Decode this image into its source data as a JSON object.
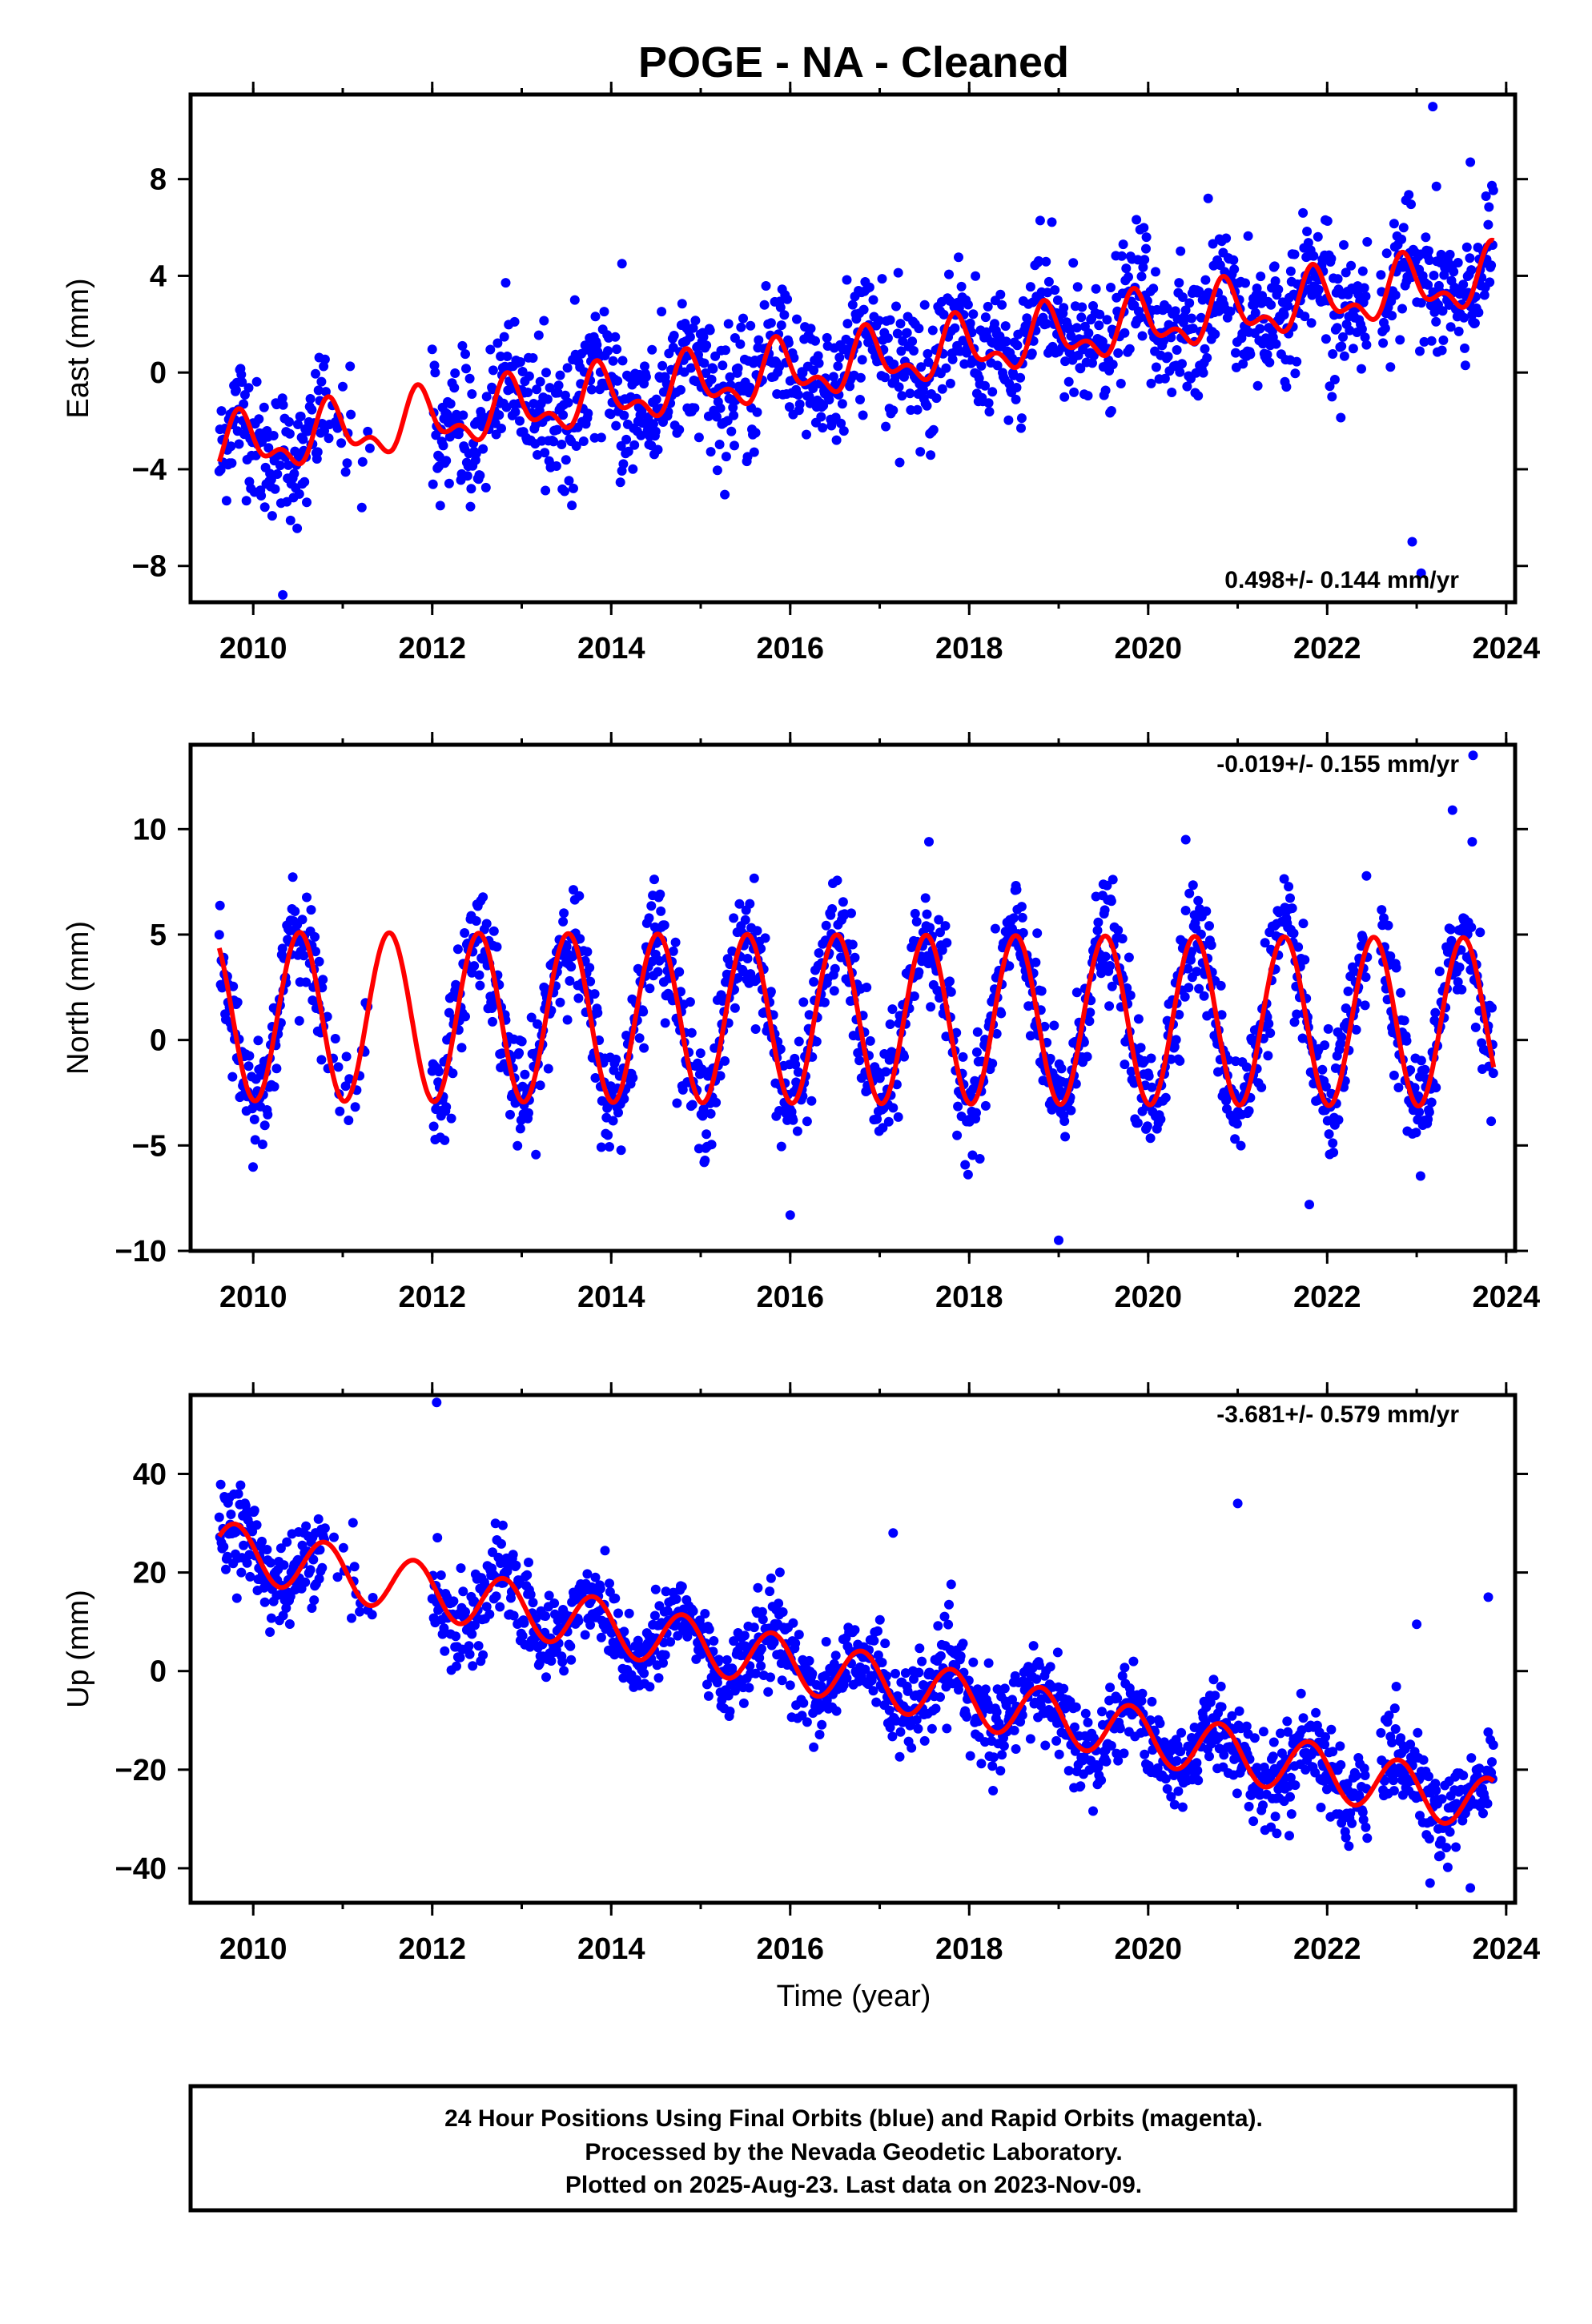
{
  "title": "POGE  - NA - Cleaned",
  "colors": {
    "data_points": "#0000ff",
    "model_curve": "#ff0000",
    "frame": "#000000",
    "background": "#ffffff"
  },
  "x_axis": {
    "label": "Time (year)",
    "range": [
      2009.3,
      2024.1
    ],
    "ticks": [
      2010,
      2012,
      2014,
      2016,
      2018,
      2020,
      2022,
      2024
    ],
    "tick_labels": [
      "2010",
      "2012",
      "2014",
      "2016",
      "2018",
      "2020",
      "2022",
      "2024"
    ]
  },
  "chart_data": [
    {
      "type": "scatter",
      "component": "east",
      "ylabel": "East (mm)",
      "ylim": [
        -9.5,
        11.5
      ],
      "yticks": [
        -8,
        -4,
        0,
        4,
        8
      ],
      "ytick_labels": [
        "−8",
        "−4",
        "0",
        "4",
        "8"
      ],
      "rate_text": "0.498+/- 0.144 mm/yr",
      "rate_position": "bottom-right",
      "trend": {
        "slope_mm_per_yr": 0.498,
        "intercept_mm_at_2016": 0.0
      },
      "seasonal": {
        "annual_amp_mm": 1.0,
        "annual_phase_yr": 0.62,
        "semiannual_amp_mm": 0.6,
        "semiannual_phase_yr": 0.2
      },
      "scatter_mm": 1.3,
      "data_spans": [
        [
          2009.62,
          2011.35
        ],
        [
          2012.0,
          2022.45
        ],
        [
          2022.6,
          2023.86
        ]
      ],
      "outliers": [
        [
          2023.18,
          11.0
        ],
        [
          2023.22,
          7.7
        ],
        [
          2023.6,
          8.7
        ],
        [
          2023.05,
          -8.3
        ],
        [
          2021.73,
          6.6
        ],
        [
          2014.12,
          4.5
        ],
        [
          2019.98,
          5.6
        ],
        [
          2020.67,
          7.2
        ],
        [
          2022.95,
          -7.0
        ],
        [
          2010.33,
          -9.2
        ]
      ],
      "fit_curve": "sinusoid-plus-trend"
    },
    {
      "type": "scatter",
      "component": "north",
      "ylabel": "North (mm)",
      "ylim": [
        -10,
        14
      ],
      "yticks": [
        -10,
        -5,
        0,
        5,
        10
      ],
      "ytick_labels": [
        "−10",
        "−5",
        "0",
        "5",
        "10"
      ],
      "rate_text": "-0.019+/- 0.155 mm/yr",
      "rate_position": "top-right",
      "trend": {
        "slope_mm_per_yr": -0.019,
        "intercept_mm_at_2016": 1.0
      },
      "seasonal": {
        "annual_amp_mm": 4.0,
        "annual_phase_yr": 0.27,
        "semiannual_amp_mm": 0.0,
        "semiannual_phase_yr": 0.0
      },
      "scatter_mm": 1.3,
      "data_spans": [
        [
          2009.62,
          2011.35
        ],
        [
          2012.0,
          2022.45
        ],
        [
          2022.6,
          2023.86
        ]
      ],
      "outliers": [
        [
          2023.63,
          13.5
        ],
        [
          2023.4,
          10.9
        ],
        [
          2020.42,
          9.5
        ],
        [
          2017.55,
          9.4
        ],
        [
          2019.0,
          -9.5
        ],
        [
          2016.0,
          -8.3
        ],
        [
          2021.8,
          -7.8
        ],
        [
          2023.62,
          9.4
        ]
      ],
      "fit_curve": "sinusoid-plus-trend"
    },
    {
      "type": "scatter",
      "component": "up",
      "ylabel": "Up (mm)",
      "ylim": [
        -47,
        56
      ],
      "yticks": [
        -40,
        -20,
        0,
        20,
        40
      ],
      "ytick_labels": [
        "−40",
        "−20",
        "0",
        "20",
        "40"
      ],
      "rate_text": "-3.681+/- 0.579 mm/yr",
      "rate_position": "top-right",
      "trend": {
        "slope_mm_per_yr": -3.681,
        "intercept_mm_at_2016": 1.5
      },
      "seasonal": {
        "annual_amp_mm": 5.5,
        "annual_phase_yr": 0.55,
        "semiannual_amp_mm": 0.0,
        "semiannual_phase_yr": 0.0
      },
      "scatter_mm": 4.5,
      "data_spans": [
        [
          2009.62,
          2011.35
        ],
        [
          2012.0,
          2022.45
        ],
        [
          2022.6,
          2023.86
        ]
      ],
      "outliers": [
        [
          2012.05,
          54.5
        ],
        [
          2021.0,
          34.0
        ],
        [
          2017.15,
          28.0
        ],
        [
          2023.8,
          15.0
        ],
        [
          2023.0,
          9.5
        ],
        [
          2023.15,
          -43.0
        ],
        [
          2023.6,
          -44.0
        ]
      ],
      "fit_curve": "sinusoid-plus-trend"
    }
  ],
  "caption": {
    "lines": [
      "24 Hour Positions Using Final Orbits (blue) and Rapid Orbits (magenta).",
      "Processed by the Nevada Geodetic Laboratory.",
      "Plotted on 2025-Aug-23. Last data on 2023-Nov-09."
    ]
  }
}
